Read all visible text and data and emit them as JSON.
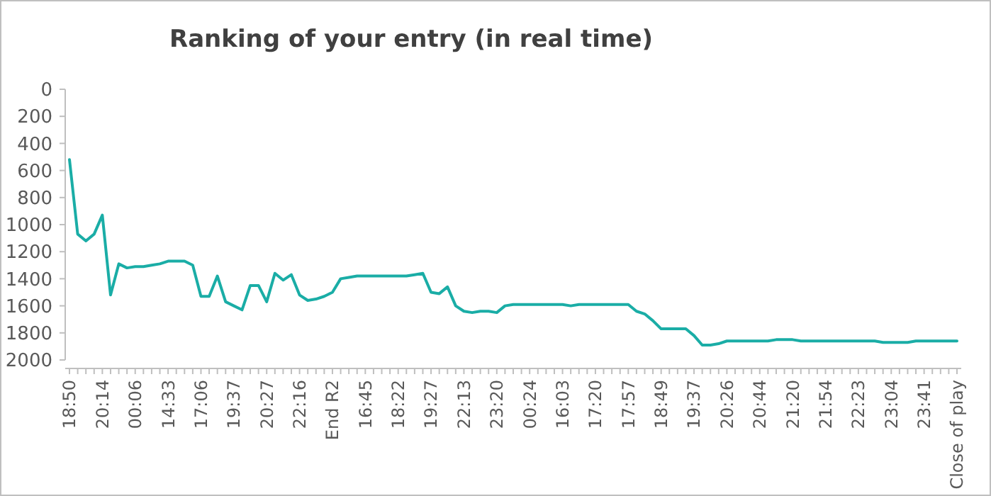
{
  "chart_data": {
    "type": "line",
    "title": "Ranking of your entry (in real time)",
    "categories": [
      "18:50",
      null,
      null,
      null,
      "20:14",
      null,
      null,
      null,
      "00:06",
      null,
      null,
      null,
      "14:33",
      null,
      null,
      null,
      "17:06",
      null,
      null,
      null,
      "19:37",
      null,
      null,
      null,
      "20:27",
      null,
      null,
      null,
      "22:16",
      null,
      null,
      null,
      "End R2",
      null,
      null,
      null,
      "16:45",
      null,
      null,
      null,
      "18:22",
      null,
      null,
      null,
      "19:27",
      null,
      null,
      null,
      "22:13",
      null,
      null,
      null,
      "23:20",
      null,
      null,
      null,
      "00:24",
      null,
      null,
      null,
      "16:03",
      null,
      null,
      null,
      "17:20",
      null,
      null,
      null,
      "17:57",
      null,
      null,
      null,
      "18:49",
      null,
      null,
      null,
      "19:37",
      null,
      null,
      null,
      "20:26",
      null,
      null,
      null,
      "20:44",
      null,
      null,
      null,
      "21:20",
      null,
      null,
      null,
      "21:54",
      null,
      null,
      null,
      "22:23",
      null,
      null,
      null,
      "23:04",
      null,
      null,
      null,
      "23:41",
      null,
      null,
      null,
      "Close of play"
    ],
    "series": [
      {
        "color": "#1aada6",
        "values": [
          520,
          1070,
          1120,
          1070,
          930,
          1520,
          1290,
          1320,
          1310,
          1310,
          1300,
          1290,
          1270,
          1270,
          1270,
          1300,
          1530,
          1530,
          1380,
          1570,
          1600,
          1630,
          1450,
          1450,
          1570,
          1360,
          1410,
          1370,
          1520,
          1560,
          1550,
          1530,
          1500,
          1400,
          1390,
          1380,
          1380,
          1380,
          1380,
          1380,
          1380,
          1380,
          1370,
          1360,
          1500,
          1510,
          1460,
          1600,
          1640,
          1650,
          1640,
          1640,
          1650,
          1600,
          1590,
          1590,
          1590,
          1590,
          1590,
          1590,
          1590,
          1600,
          1590,
          1590,
          1590,
          1590,
          1590,
          1590,
          1590,
          1640,
          1660,
          1710,
          1770,
          1770,
          1770,
          1770,
          1820,
          1890,
          1890,
          1880,
          1860,
          1860,
          1860,
          1860,
          1860,
          1860,
          1850,
          1850,
          1850,
          1860,
          1860,
          1860,
          1860,
          1860,
          1860,
          1860,
          1860,
          1860,
          1860,
          1870,
          1870,
          1870,
          1870,
          1860,
          1860,
          1860,
          1860,
          1860,
          1860
        ]
      }
    ],
    "ylim": [
      2000,
      0
    ],
    "yticks": [
      0,
      200,
      400,
      600,
      800,
      1000,
      1200,
      1400,
      1600,
      1800,
      2000
    ],
    "grid": false,
    "marker": "none",
    "line_style": "solid"
  }
}
